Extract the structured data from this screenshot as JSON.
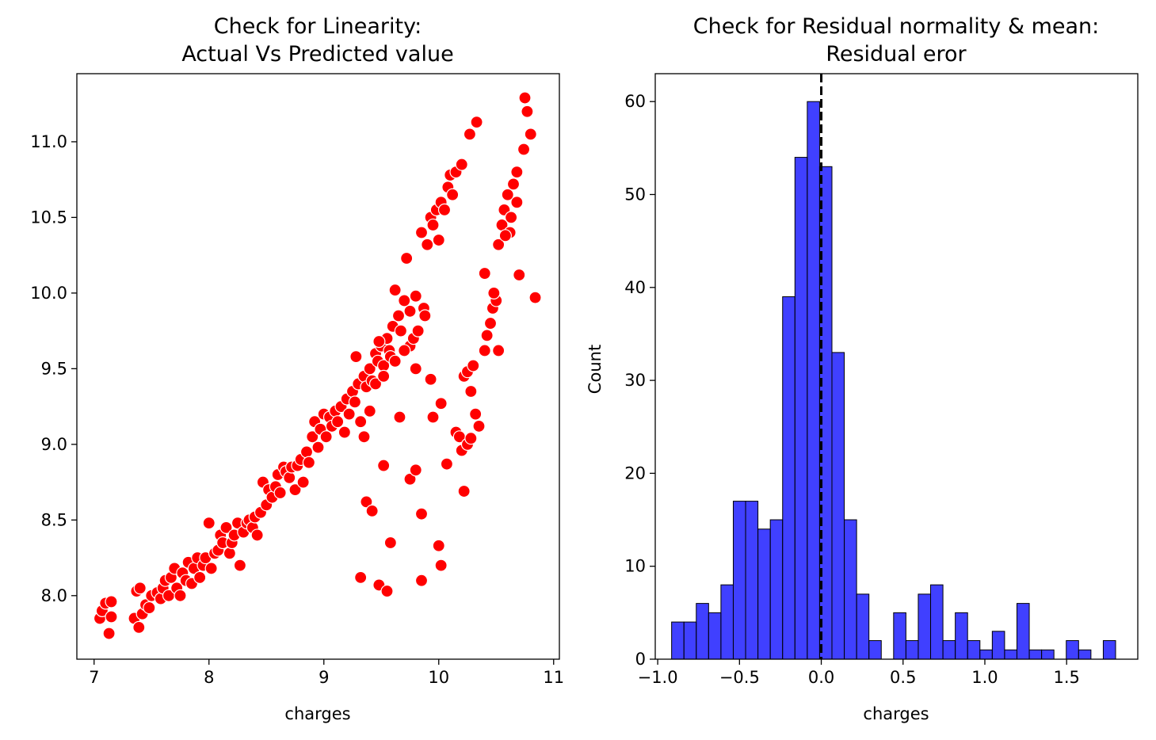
{
  "chart_data": [
    {
      "type": "scatter",
      "title_lines": [
        "Check for Linearity:",
        "Actual Vs Predicted value"
      ],
      "xlabel": "charges",
      "ylabel": "",
      "xlim": [
        6.85,
        11.05
      ],
      "ylim": [
        7.58,
        11.45
      ],
      "xticks": [
        7,
        8,
        9,
        10,
        11
      ],
      "xtick_labels": [
        "7",
        "8",
        "9",
        "10",
        "11"
      ],
      "yticks": [
        8.0,
        8.5,
        9.0,
        9.5,
        10.0,
        10.5,
        11.0
      ],
      "ytick_labels": [
        "8.0",
        "8.5",
        "9.0",
        "9.5",
        "10.0",
        "10.5",
        "11.0"
      ],
      "grid": false,
      "marker_color": "#ff0000",
      "marker_edge": "#ffffff",
      "points": [
        [
          7.05,
          7.85
        ],
        [
          7.07,
          7.9
        ],
        [
          7.1,
          7.95
        ],
        [
          7.13,
          7.75
        ],
        [
          7.15,
          7.86
        ],
        [
          7.15,
          7.96
        ],
        [
          7.35,
          7.85
        ],
        [
          7.37,
          8.03
        ],
        [
          7.39,
          7.79
        ],
        [
          7.4,
          8.05
        ],
        [
          7.42,
          7.88
        ],
        [
          7.45,
          7.94
        ],
        [
          7.48,
          7.92
        ],
        [
          7.5,
          8.0
        ],
        [
          7.55,
          8.02
        ],
        [
          7.58,
          7.98
        ],
        [
          7.6,
          8.05
        ],
        [
          7.62,
          8.1
        ],
        [
          7.65,
          8.0
        ],
        [
          7.67,
          8.12
        ],
        [
          7.7,
          8.18
        ],
        [
          7.72,
          8.05
        ],
        [
          7.75,
          8.0
        ],
        [
          7.77,
          8.15
        ],
        [
          7.8,
          8.1
        ],
        [
          7.82,
          8.22
        ],
        [
          7.85,
          8.08
        ],
        [
          7.87,
          8.18
        ],
        [
          7.9,
          8.25
        ],
        [
          7.92,
          8.12
        ],
        [
          7.95,
          8.2
        ],
        [
          7.97,
          8.25
        ],
        [
          8.0,
          8.48
        ],
        [
          8.02,
          8.18
        ],
        [
          8.05,
          8.28
        ],
        [
          8.08,
          8.3
        ],
        [
          8.1,
          8.4
        ],
        [
          8.12,
          8.35
        ],
        [
          8.15,
          8.45
        ],
        [
          8.18,
          8.28
        ],
        [
          8.2,
          8.35
        ],
        [
          8.22,
          8.4
        ],
        [
          8.25,
          8.48
        ],
        [
          8.27,
          8.2
        ],
        [
          8.3,
          8.42
        ],
        [
          8.33,
          8.48
        ],
        [
          8.35,
          8.5
        ],
        [
          8.38,
          8.45
        ],
        [
          8.4,
          8.52
        ],
        [
          8.42,
          8.4
        ],
        [
          8.45,
          8.55
        ],
        [
          8.47,
          8.75
        ],
        [
          8.5,
          8.6
        ],
        [
          8.52,
          8.7
        ],
        [
          8.55,
          8.65
        ],
        [
          8.58,
          8.72
        ],
        [
          8.6,
          8.8
        ],
        [
          8.62,
          8.68
        ],
        [
          8.65,
          8.85
        ],
        [
          8.67,
          8.82
        ],
        [
          8.7,
          8.78
        ],
        [
          8.72,
          8.85
        ],
        [
          8.75,
          8.7
        ],
        [
          8.77,
          8.86
        ],
        [
          8.8,
          8.9
        ],
        [
          8.82,
          8.75
        ],
        [
          8.85,
          8.95
        ],
        [
          8.87,
          8.88
        ],
        [
          8.9,
          9.05
        ],
        [
          8.92,
          9.15
        ],
        [
          8.95,
          8.98
        ],
        [
          8.97,
          9.1
        ],
        [
          9.0,
          9.2
        ],
        [
          9.02,
          9.05
        ],
        [
          9.05,
          9.18
        ],
        [
          9.07,
          9.12
        ],
        [
          9.1,
          9.22
        ],
        [
          9.12,
          9.15
        ],
        [
          9.15,
          9.25
        ],
        [
          9.18,
          9.08
        ],
        [
          9.2,
          9.3
        ],
        [
          9.22,
          9.2
        ],
        [
          9.25,
          9.35
        ],
        [
          9.27,
          9.28
        ],
        [
          9.3,
          9.4
        ],
        [
          9.32,
          9.15
        ],
        [
          9.35,
          9.45
        ],
        [
          9.37,
          9.38
        ],
        [
          9.4,
          9.5
        ],
        [
          9.42,
          9.42
        ],
        [
          9.45,
          9.6
        ],
        [
          9.47,
          9.55
        ],
        [
          9.5,
          9.65
        ],
        [
          9.52,
          9.52
        ],
        [
          9.55,
          9.7
        ],
        [
          9.57,
          9.62
        ],
        [
          9.6,
          9.78
        ],
        [
          9.62,
          10.02
        ],
        [
          9.65,
          9.85
        ],
        [
          9.67,
          9.75
        ],
        [
          9.7,
          9.95
        ],
        [
          9.72,
          10.23
        ],
        [
          9.75,
          9.65
        ],
        [
          9.78,
          9.7
        ],
        [
          9.8,
          9.98
        ],
        [
          9.82,
          9.75
        ],
        [
          9.85,
          10.4
        ],
        [
          9.87,
          9.9
        ],
        [
          9.9,
          10.32
        ],
        [
          9.93,
          10.5
        ],
        [
          9.95,
          10.45
        ],
        [
          9.98,
          10.55
        ],
        [
          10.0,
          10.35
        ],
        [
          10.02,
          10.6
        ],
        [
          10.05,
          10.55
        ],
        [
          10.08,
          10.7
        ],
        [
          10.1,
          10.78
        ],
        [
          10.12,
          10.65
        ],
        [
          10.15,
          10.8
        ],
        [
          10.2,
          10.85
        ],
        [
          10.27,
          11.05
        ],
        [
          10.33,
          11.13
        ],
        [
          9.28,
          9.58
        ],
        [
          9.35,
          9.05
        ],
        [
          9.4,
          9.22
        ],
        [
          9.45,
          9.4
        ],
        [
          9.48,
          9.68
        ],
        [
          9.52,
          9.45
        ],
        [
          9.58,
          9.58
        ],
        [
          9.62,
          9.55
        ],
        [
          9.7,
          9.62
        ],
        [
          9.75,
          9.88
        ],
        [
          9.8,
          9.5
        ],
        [
          9.88,
          9.85
        ],
        [
          9.66,
          9.18
        ],
        [
          9.52,
          8.86
        ],
        [
          9.37,
          8.62
        ],
        [
          9.42,
          8.56
        ],
        [
          9.32,
          8.12
        ],
        [
          9.48,
          8.07
        ],
        [
          9.55,
          8.03
        ],
        [
          9.58,
          8.35
        ],
        [
          9.75,
          8.77
        ],
        [
          9.8,
          8.83
        ],
        [
          9.85,
          8.54
        ],
        [
          9.85,
          8.1
        ],
        [
          9.93,
          9.43
        ],
        [
          9.95,
          9.18
        ],
        [
          10.02,
          9.27
        ],
        [
          10.0,
          8.33
        ],
        [
          10.02,
          8.2
        ],
        [
          10.07,
          8.87
        ],
        [
          10.15,
          9.08
        ],
        [
          10.18,
          9.05
        ],
        [
          10.2,
          8.96
        ],
        [
          10.22,
          8.69
        ],
        [
          10.25,
          9.0
        ],
        [
          10.28,
          9.04
        ],
        [
          10.32,
          9.2
        ],
        [
          10.35,
          9.12
        ],
        [
          10.22,
          9.45
        ],
        [
          10.25,
          9.48
        ],
        [
          10.3,
          9.52
        ],
        [
          10.28,
          9.35
        ],
        [
          10.4,
          9.62
        ],
        [
          10.42,
          9.72
        ],
        [
          10.45,
          9.8
        ],
        [
          10.47,
          9.9
        ],
        [
          10.5,
          9.95
        ],
        [
          10.52,
          9.62
        ],
        [
          10.4,
          10.13
        ],
        [
          10.48,
          10.0
        ],
        [
          10.52,
          10.32
        ],
        [
          10.55,
          10.45
        ],
        [
          10.57,
          10.55
        ],
        [
          10.6,
          10.65
        ],
        [
          10.62,
          10.4
        ],
        [
          10.65,
          10.72
        ],
        [
          10.68,
          10.8
        ],
        [
          10.7,
          10.12
        ],
        [
          10.74,
          10.95
        ],
        [
          10.77,
          11.2
        ],
        [
          10.8,
          11.05
        ],
        [
          10.75,
          11.29
        ],
        [
          10.84,
          9.97
        ],
        [
          10.58,
          10.38
        ],
        [
          10.63,
          10.5
        ],
        [
          10.68,
          10.6
        ]
      ]
    },
    {
      "type": "bar",
      "title_lines": [
        "Check for Residual normality & mean:",
        "Residual eror"
      ],
      "xlabel": "charges",
      "ylabel": "Count",
      "xlim": [
        -1.015,
        1.935
      ],
      "ylim": [
        0,
        63
      ],
      "xticks": [
        -1.0,
        -0.5,
        0.0,
        0.5,
        1.0,
        1.5
      ],
      "xtick_labels": [
        "−1.0",
        "−0.5",
        "0.0",
        "0.5",
        "1.0",
        "1.5"
      ],
      "yticks": [
        0,
        10,
        20,
        30,
        40,
        50,
        60
      ],
      "ytick_labels": [
        "0",
        "10",
        "20",
        "30",
        "40",
        "50",
        "60"
      ],
      "grid": false,
      "bar_color": "#0000ff",
      "bar_alpha": 0.75,
      "reference_line_x": 0.0,
      "bin_start": -0.915,
      "bin_width": 0.0754,
      "values": [
        4,
        4,
        6,
        5,
        8,
        17,
        17,
        14,
        15,
        39,
        54,
        60,
        53,
        33,
        15,
        7,
        2,
        0,
        5,
        2,
        7,
        8,
        2,
        5,
        2,
        1,
        3,
        1,
        6,
        1,
        1,
        0,
        2,
        1,
        0,
        2
      ]
    }
  ]
}
